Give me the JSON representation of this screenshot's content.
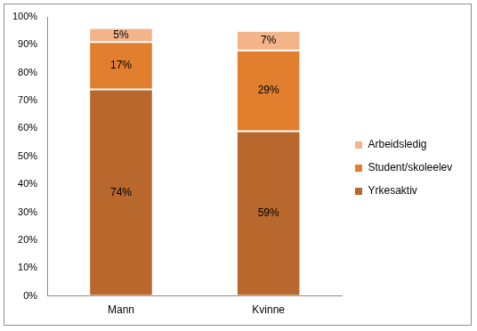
{
  "chart_data": {
    "type": "bar",
    "stacked": true,
    "categories": [
      "Mann",
      "Kvinne"
    ],
    "series": [
      {
        "name": "Yrkesaktiv",
        "color": "#b8682c",
        "values": [
          74,
          59
        ],
        "value_labels": [
          "74%",
          "59%"
        ]
      },
      {
        "name": "Student/skoleelev",
        "color": "#e17f2f",
        "values": [
          17,
          29
        ],
        "value_labels": [
          "17%",
          "29%"
        ]
      },
      {
        "name": "Arbeidsledig",
        "color": "#f4b48a",
        "values": [
          5,
          7
        ],
        "value_labels": [
          "5%",
          "7%"
        ]
      }
    ],
    "ylim": [
      0,
      100
    ],
    "yticks": [
      {
        "value": 0,
        "label": "0%"
      },
      {
        "value": 10,
        "label": "10%"
      },
      {
        "value": 20,
        "label": "20%"
      },
      {
        "value": 30,
        "label": "30%"
      },
      {
        "value": 40,
        "label": "40%"
      },
      {
        "value": 50,
        "label": "50%"
      },
      {
        "value": 60,
        "label": "60%"
      },
      {
        "value": 70,
        "label": "70%"
      },
      {
        "value": 80,
        "label": "80%"
      },
      {
        "value": 90,
        "label": "90%"
      },
      {
        "value": 100,
        "label": "100%"
      }
    ],
    "grid": false,
    "legend": "right",
    "data_labels": true
  }
}
